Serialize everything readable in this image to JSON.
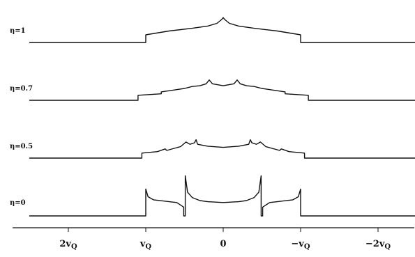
{
  "chart_data": {
    "type": "line",
    "title": "",
    "xlabel": "",
    "ylabel": "",
    "xlim": [
      -2.5,
      2.5
    ],
    "x_reversed": true,
    "grid": false,
    "legend": "none",
    "colors": {
      "trace": "#111111",
      "background": "#ffffff"
    },
    "ticks": [
      {
        "value": -2,
        "main": "2v",
        "sub": "Q"
      },
      {
        "value": -1,
        "main": "v",
        "sub": "Q"
      },
      {
        "value": 0,
        "main": "0",
        "sub": ""
      },
      {
        "value": 1,
        "main": "−v",
        "sub": "Q"
      },
      {
        "value": 2,
        "main": "−2v",
        "sub": "Q"
      }
    ],
    "series": [
      {
        "name": "η=1",
        "points": [
          [
            -2.5,
            0.0
          ],
          [
            -2.0,
            0.0
          ],
          [
            -1.0,
            0.0
          ],
          [
            -1.0,
            0.2
          ],
          [
            -0.7,
            0.3
          ],
          [
            -0.4,
            0.37
          ],
          [
            -0.2,
            0.43
          ],
          [
            -0.08,
            0.5
          ],
          [
            -0.02,
            0.6
          ],
          [
            0.0,
            0.65
          ],
          [
            0.02,
            0.6
          ],
          [
            0.08,
            0.5
          ],
          [
            0.2,
            0.43
          ],
          [
            0.4,
            0.37
          ],
          [
            0.7,
            0.3
          ],
          [
            1.0,
            0.2
          ],
          [
            1.0,
            0.0
          ],
          [
            2.0,
            0.0
          ],
          [
            2.5,
            0.0
          ]
        ]
      },
      {
        "name": "η=0.7",
        "points": [
          [
            -2.5,
            0.0
          ],
          [
            -2.0,
            0.0
          ],
          [
            -1.1,
            0.0
          ],
          [
            -1.1,
            0.13
          ],
          [
            -0.8,
            0.17
          ],
          [
            -0.8,
            0.22
          ],
          [
            -0.5,
            0.31
          ],
          [
            -0.4,
            0.36
          ],
          [
            -0.3,
            0.38
          ],
          [
            -0.22,
            0.43
          ],
          [
            -0.18,
            0.53
          ],
          [
            -0.14,
            0.43
          ],
          [
            0.0,
            0.38
          ],
          [
            0.14,
            0.43
          ],
          [
            0.18,
            0.53
          ],
          [
            0.22,
            0.43
          ],
          [
            0.3,
            0.38
          ],
          [
            0.4,
            0.36
          ],
          [
            0.5,
            0.31
          ],
          [
            0.8,
            0.22
          ],
          [
            0.8,
            0.17
          ],
          [
            1.1,
            0.13
          ],
          [
            1.1,
            0.0
          ],
          [
            2.0,
            0.0
          ],
          [
            2.5,
            0.0
          ]
        ]
      },
      {
        "name": "η=0.5",
        "points": [
          [
            -2.5,
            0.0
          ],
          [
            -2.0,
            0.0
          ],
          [
            -1.05,
            0.0
          ],
          [
            -1.05,
            0.13
          ],
          [
            -0.85,
            0.17
          ],
          [
            -0.75,
            0.24
          ],
          [
            -0.73,
            0.2
          ],
          [
            -0.55,
            0.3
          ],
          [
            -0.48,
            0.42
          ],
          [
            -0.43,
            0.36
          ],
          [
            -0.37,
            0.4
          ],
          [
            -0.35,
            0.48
          ],
          [
            -0.33,
            0.36
          ],
          [
            -0.2,
            0.31
          ],
          [
            0.0,
            0.28
          ],
          [
            0.2,
            0.31
          ],
          [
            0.33,
            0.36
          ],
          [
            0.35,
            0.48
          ],
          [
            0.37,
            0.4
          ],
          [
            0.43,
            0.36
          ],
          [
            0.48,
            0.42
          ],
          [
            0.55,
            0.3
          ],
          [
            0.73,
            0.2
          ],
          [
            0.75,
            0.24
          ],
          [
            0.85,
            0.17
          ],
          [
            1.05,
            0.13
          ],
          [
            1.05,
            0.0
          ],
          [
            2.0,
            0.0
          ],
          [
            2.5,
            0.0
          ]
        ]
      },
      {
        "name": "η=0",
        "points": [
          [
            -2.5,
            0.0
          ],
          [
            -2.0,
            0.0
          ],
          [
            -1.0,
            0.0
          ],
          [
            -1.0,
            0.7
          ],
          [
            -0.97,
            0.5
          ],
          [
            -0.9,
            0.42
          ],
          [
            -0.6,
            0.35
          ],
          [
            -0.51,
            0.23
          ],
          [
            -0.51,
            0.0
          ],
          [
            -0.49,
            0.0
          ],
          [
            -0.49,
            1.05
          ],
          [
            -0.46,
            0.62
          ],
          [
            -0.4,
            0.48
          ],
          [
            -0.3,
            0.4
          ],
          [
            -0.2,
            0.37
          ],
          [
            0.0,
            0.35
          ],
          [
            0.2,
            0.37
          ],
          [
            0.3,
            0.4
          ],
          [
            0.4,
            0.48
          ],
          [
            0.46,
            0.62
          ],
          [
            0.49,
            1.05
          ],
          [
            0.49,
            0.0
          ],
          [
            0.51,
            0.0
          ],
          [
            0.51,
            0.23
          ],
          [
            0.6,
            0.35
          ],
          [
            0.9,
            0.42
          ],
          [
            0.97,
            0.5
          ],
          [
            1.0,
            0.7
          ],
          [
            1.0,
            0.0
          ],
          [
            2.0,
            0.0
          ],
          [
            2.5,
            0.0
          ]
        ]
      }
    ]
  }
}
